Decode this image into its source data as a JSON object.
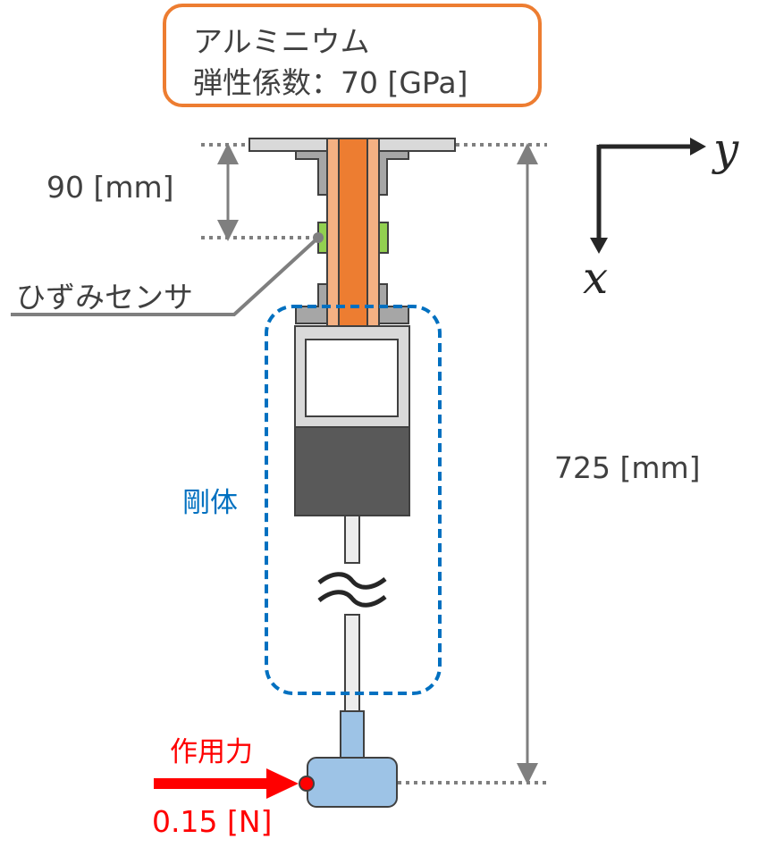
{
  "material": {
    "name": "アルミニウム",
    "modulus": "弾性係数：70 [GPa]"
  },
  "dimensions": {
    "sensor_offset": "90 [mm]",
    "total_length": "725 [mm]"
  },
  "labels": {
    "strain_sensor": "ひずみセンサ",
    "rigid_body": "剛体",
    "force_title": "作用力",
    "force_value": "0.15 [N]"
  },
  "axes": {
    "x": "x",
    "y": "y"
  },
  "colors": {
    "beam_orange": "#ED7D31",
    "beam_light": "#F4B183",
    "mount_gray": "#A6A6A6",
    "block_dark": "#595959",
    "sensor_green": "#92D050",
    "rigid_blue": "#0070C0",
    "probe_blue": "#9DC3E6",
    "force_red": "#FF0000",
    "text_gray": "#404040"
  }
}
